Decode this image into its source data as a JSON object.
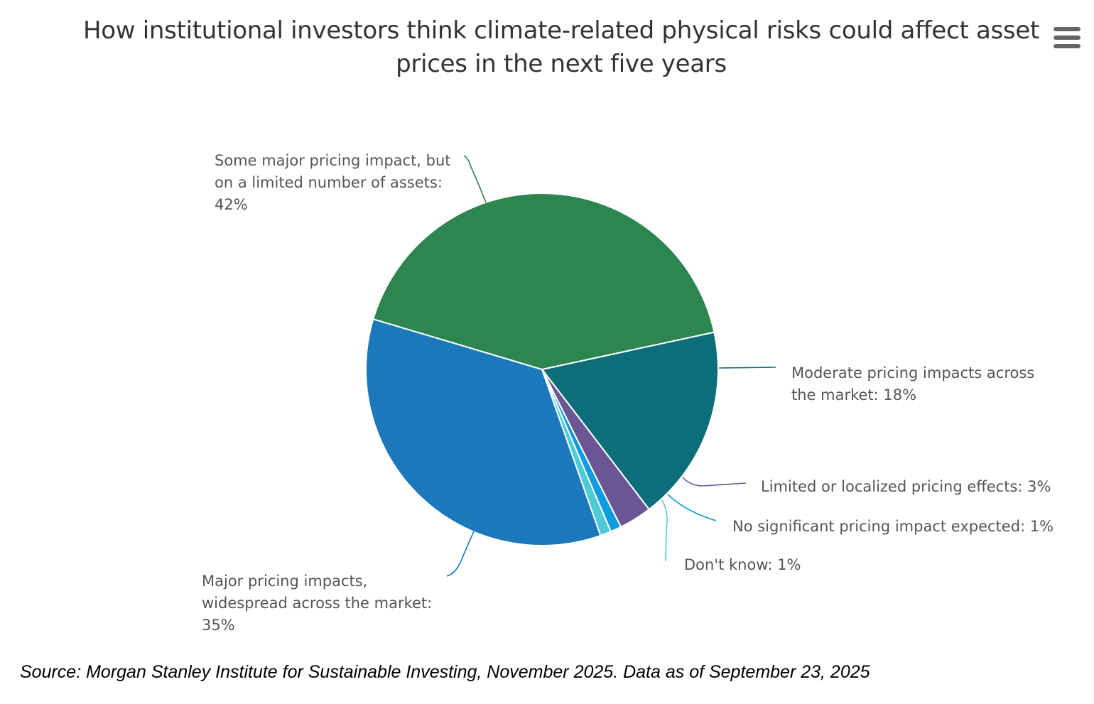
{
  "chart_data": {
    "type": "pie",
    "title": "How institutional investors think climate-related physical risks could affect asset prices in the next five years",
    "categories": [
      "Moderate pricing impacts across the market",
      "Limited or localized pricing effects",
      "No significant pricing impact expected",
      "Don't know",
      "Major pricing impacts, widespread across the market",
      "Some major pricing impact, but on a limited number of assets"
    ],
    "values": [
      18,
      3,
      1,
      1,
      35,
      42
    ],
    "colors": [
      "#0b6e78",
      "#6a5694",
      "#0e9be0",
      "#4ecad4",
      "#1b78bb",
      "#2d8650"
    ],
    "labels": [
      [
        "Moderate pricing impacts across",
        "the market: 18%"
      ],
      [
        "Limited or localized pricing effects: 3%"
      ],
      [
        "No significant pricing impact expected: 1%"
      ],
      [
        "Don't know: 1%"
      ],
      [
        "Major pricing impacts,",
        "widespread across the market:",
        "35%"
      ],
      [
        "Some major pricing impact, but",
        "on a limited number of assets:",
        "42%"
      ]
    ]
  },
  "menu": {
    "icon": "hamburger-menu-icon"
  },
  "source": "Source: Morgan Stanley Institute for Sustainable Investing, November 2025. Data as of September 23, 2025"
}
